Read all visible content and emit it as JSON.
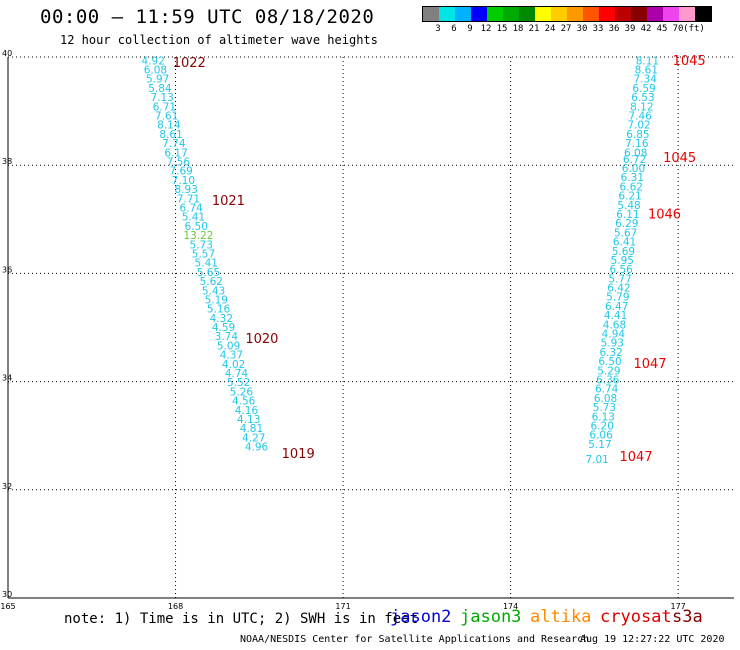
{
  "header": {
    "title": "00:00 – 11:59 UTC 08/18/2020",
    "subtitle": "12 hour collection of altimeter wave heights"
  },
  "colorbar": {
    "colors": [
      "#808080",
      "#00e5e5",
      "#00b2ff",
      "#0000ff",
      "#00cc00",
      "#00aa00",
      "#008800",
      "#ffff00",
      "#ffcc00",
      "#ff9900",
      "#ff5500",
      "#ff0000",
      "#bb0000",
      "#880000",
      "#aa00aa",
      "#ee44ee",
      "#ff99cc",
      "#000000"
    ],
    "labels": [
      "3",
      "6",
      "9",
      "12",
      "15",
      "18",
      "21",
      "24",
      "27",
      "30",
      "33",
      "36",
      "39",
      "42",
      "45",
      "70",
      "(ft)"
    ]
  },
  "chart_data": {
    "type": "scatter",
    "xlim": [
      165,
      178
    ],
    "ylim": [
      30,
      40
    ],
    "xticks": [
      "165",
      "168",
      "171",
      "174",
      "177"
    ],
    "yticks": [
      "30",
      "32",
      "34",
      "36",
      "38",
      "40"
    ],
    "grid": true,
    "series": [
      {
        "satellite": "jason3",
        "color": "#20c8e8",
        "points": [
          {
            "lon": 167.6,
            "lat": 39.92,
            "label": "4.92"
          },
          {
            "lon": 167.64,
            "lat": 39.75,
            "label": "6.08"
          },
          {
            "lon": 167.68,
            "lat": 39.58,
            "label": "5.97"
          },
          {
            "lon": 167.72,
            "lat": 39.41,
            "label": "5.84"
          },
          {
            "lon": 167.76,
            "lat": 39.24,
            "label": "7.13"
          },
          {
            "lon": 167.8,
            "lat": 39.07,
            "label": "6.71"
          },
          {
            "lon": 167.84,
            "lat": 38.9,
            "label": "7.61"
          },
          {
            "lon": 167.88,
            "lat": 38.73,
            "label": "8.14"
          },
          {
            "lon": 167.92,
            "lat": 38.56,
            "label": "8.61"
          },
          {
            "lon": 167.97,
            "lat": 38.39,
            "label": "7.74"
          },
          {
            "lon": 168.01,
            "lat": 38.22,
            "label": "6.17"
          },
          {
            "lon": 168.05,
            "lat": 38.05,
            "label": "7.56"
          },
          {
            "lon": 168.1,
            "lat": 37.88,
            "label": "7.69"
          },
          {
            "lon": 168.14,
            "lat": 37.71,
            "label": "7.10"
          },
          {
            "lon": 168.19,
            "lat": 37.54,
            "label": "8.93"
          },
          {
            "lon": 168.23,
            "lat": 37.37,
            "label": "7.71"
          },
          {
            "lon": 168.28,
            "lat": 37.2,
            "label": "6.74"
          },
          {
            "lon": 168.32,
            "lat": 37.03,
            "label": "5.41"
          },
          {
            "lon": 168.37,
            "lat": 36.86,
            "label": "6.50"
          },
          {
            "lon": 168.41,
            "lat": 36.69,
            "label": "13.22",
            "color": "#66cc33"
          },
          {
            "lon": 168.46,
            "lat": 36.52,
            "label": "5.73"
          },
          {
            "lon": 168.5,
            "lat": 36.35,
            "label": "5.57"
          },
          {
            "lon": 168.55,
            "lat": 36.18,
            "label": "5.41"
          },
          {
            "lon": 168.59,
            "lat": 36.01,
            "label": "5.65"
          },
          {
            "lon": 168.64,
            "lat": 35.84,
            "label": "5.62"
          },
          {
            "lon": 168.68,
            "lat": 35.67,
            "label": "5.43"
          },
          {
            "lon": 168.73,
            "lat": 35.5,
            "label": "5.19"
          },
          {
            "lon": 168.77,
            "lat": 35.33,
            "label": "5.16"
          },
          {
            "lon": 168.82,
            "lat": 35.16,
            "label": "4.32"
          },
          {
            "lon": 168.86,
            "lat": 34.99,
            "label": "4.59"
          },
          {
            "lon": 168.91,
            "lat": 34.82,
            "label": "3.74"
          },
          {
            "lon": 168.95,
            "lat": 34.65,
            "label": "5.09"
          },
          {
            "lon": 169.0,
            "lat": 34.48,
            "label": "4.37"
          },
          {
            "lon": 169.04,
            "lat": 34.31,
            "label": "4.02"
          },
          {
            "lon": 169.09,
            "lat": 34.14,
            "label": "4.74"
          },
          {
            "lon": 169.13,
            "lat": 33.97,
            "label": "5.52"
          },
          {
            "lon": 169.18,
            "lat": 33.8,
            "label": "5.26"
          },
          {
            "lon": 169.22,
            "lat": 33.63,
            "label": "4.56"
          },
          {
            "lon": 169.27,
            "lat": 33.46,
            "label": "4.16"
          },
          {
            "lon": 169.31,
            "lat": 33.29,
            "label": "4.13"
          },
          {
            "lon": 169.36,
            "lat": 33.12,
            "label": "4.81"
          },
          {
            "lon": 169.4,
            "lat": 32.95,
            "label": "4.27"
          },
          {
            "lon": 169.45,
            "lat": 32.78,
            "label": "4.96"
          }
        ]
      },
      {
        "satellite": "jason3",
        "color": "#20c8e8",
        "points": [
          {
            "lon": 176.45,
            "lat": 39.92,
            "label": "8.11"
          },
          {
            "lon": 176.43,
            "lat": 39.75,
            "label": "8.61"
          },
          {
            "lon": 176.41,
            "lat": 39.58,
            "label": "7.34"
          },
          {
            "lon": 176.39,
            "lat": 39.41,
            "label": "6.59"
          },
          {
            "lon": 176.37,
            "lat": 39.24,
            "label": "6.53"
          },
          {
            "lon": 176.35,
            "lat": 39.07,
            "label": "8.12"
          },
          {
            "lon": 176.32,
            "lat": 38.9,
            "label": "7.46"
          },
          {
            "lon": 176.3,
            "lat": 38.73,
            "label": "7.02"
          },
          {
            "lon": 176.28,
            "lat": 38.56,
            "label": "6.85"
          },
          {
            "lon": 176.26,
            "lat": 38.39,
            "label": "7.16"
          },
          {
            "lon": 176.24,
            "lat": 38.22,
            "label": "6.08"
          },
          {
            "lon": 176.22,
            "lat": 38.1,
            "label": "6.72"
          },
          {
            "lon": 176.2,
            "lat": 37.93,
            "label": "6.00"
          },
          {
            "lon": 176.18,
            "lat": 37.76,
            "label": "6.31"
          },
          {
            "lon": 176.16,
            "lat": 37.59,
            "label": "6.62"
          },
          {
            "lon": 176.14,
            "lat": 37.42,
            "label": "6.21"
          },
          {
            "lon": 176.12,
            "lat": 37.25,
            "label": "5.48"
          },
          {
            "lon": 176.1,
            "lat": 37.08,
            "label": "6.11"
          },
          {
            "lon": 176.08,
            "lat": 36.91,
            "label": "6.29"
          },
          {
            "lon": 176.06,
            "lat": 36.74,
            "label": "5.67"
          },
          {
            "lon": 176.04,
            "lat": 36.57,
            "label": "6.41"
          },
          {
            "lon": 176.02,
            "lat": 36.4,
            "label": "5.69"
          },
          {
            "lon": 176.0,
            "lat": 36.23,
            "label": "5.95"
          },
          {
            "lon": 175.98,
            "lat": 36.06,
            "label": "6.56"
          },
          {
            "lon": 175.96,
            "lat": 35.89,
            "label": "5.77"
          },
          {
            "lon": 175.94,
            "lat": 35.72,
            "label": "6.42"
          },
          {
            "lon": 175.92,
            "lat": 35.55,
            "label": "5.79"
          },
          {
            "lon": 175.9,
            "lat": 35.38,
            "label": "6.47"
          },
          {
            "lon": 175.88,
            "lat": 35.21,
            "label": "4.41"
          },
          {
            "lon": 175.86,
            "lat": 35.04,
            "label": "4.68"
          },
          {
            "lon": 175.84,
            "lat": 34.87,
            "label": "4.94"
          },
          {
            "lon": 175.82,
            "lat": 34.7,
            "label": "5.93"
          },
          {
            "lon": 175.8,
            "lat": 34.53,
            "label": "6.32"
          },
          {
            "lon": 175.78,
            "lat": 34.36,
            "label": "6.50"
          },
          {
            "lon": 175.76,
            "lat": 34.19,
            "label": "5.29"
          },
          {
            "lon": 175.74,
            "lat": 34.02,
            "label": "6.36"
          },
          {
            "lon": 175.72,
            "lat": 33.85,
            "label": "6.74"
          },
          {
            "lon": 175.7,
            "lat": 33.68,
            "label": "6.08"
          },
          {
            "lon": 175.68,
            "lat": 33.51,
            "label": "5.73"
          },
          {
            "lon": 175.66,
            "lat": 33.34,
            "label": "6.13"
          },
          {
            "lon": 175.64,
            "lat": 33.17,
            "label": "6.20"
          },
          {
            "lon": 175.62,
            "lat": 33.0,
            "label": "6.06"
          },
          {
            "lon": 175.6,
            "lat": 32.83,
            "label": "5.17"
          },
          {
            "lon": 175.55,
            "lat": 32.55,
            "label": "7.01"
          }
        ]
      }
    ],
    "annotations": [
      {
        "text": "1022",
        "lon": 167.95,
        "lat": 39.88,
        "color": "#880000"
      },
      {
        "text": "1021",
        "lon": 168.65,
        "lat": 37.33,
        "color": "#880000"
      },
      {
        "text": "1020",
        "lon": 169.25,
        "lat": 34.78,
        "color": "#880000"
      },
      {
        "text": "1019",
        "lon": 169.9,
        "lat": 32.65,
        "color": "#880000"
      },
      {
        "text": "1045",
        "lon": 176.9,
        "lat": 39.92,
        "color": "#ee0000"
      },
      {
        "text": "1045",
        "lon": 176.73,
        "lat": 38.12,
        "color": "#ee0000"
      },
      {
        "text": "1046",
        "lon": 176.46,
        "lat": 37.08,
        "color": "#ee0000"
      },
      {
        "text": "1047",
        "lon": 176.2,
        "lat": 34.32,
        "color": "#ee0000"
      },
      {
        "text": "1047",
        "lon": 175.95,
        "lat": 32.6,
        "color": "#ee0000"
      }
    ]
  },
  "legend": {
    "note": "note: 1) Time is in UTC; 2) SWH is in feet",
    "satellites": [
      {
        "name": "jason2",
        "color": "#0000dd"
      },
      {
        "name": "jason3",
        "color": "#00aa00"
      },
      {
        "name": "altika",
        "color": "#ff8800"
      },
      {
        "name": "cryosat",
        "color": "#dd0000"
      },
      {
        "name": "s3a",
        "color": "#880000"
      }
    ]
  },
  "footer": {
    "credit": "NOAA/NESDIS Center for Satellite Applications and Research",
    "timestamp": "Aug 19 12:27:22 UTC 2020"
  }
}
